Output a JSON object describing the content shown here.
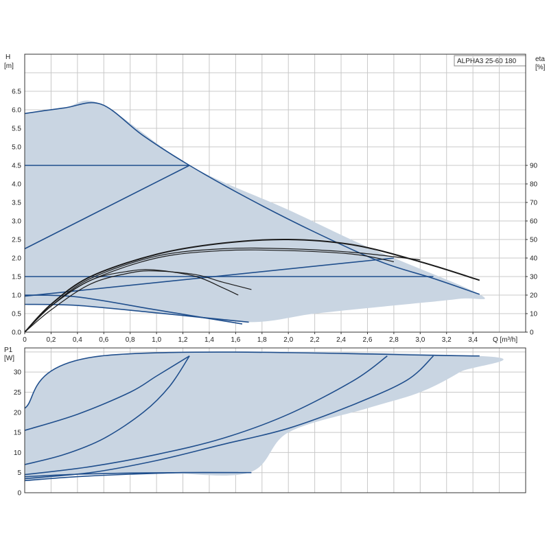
{
  "chart_data": [
    {
      "type": "line",
      "model_label": "ALPHA3 25-60 180",
      "x_axis_label": "Q [m³/h]",
      "y_axis_label": "H",
      "y_axis_unit": "[m]",
      "y2_axis_label": "eta",
      "y2_axis_unit": "[%]",
      "xlim": [
        0,
        3.8
      ],
      "ylim": [
        0,
        7.5
      ],
      "y2lim": [
        0,
        150
      ],
      "x_ticks": [
        "0",
        "0,2",
        "0,4",
        "0,6",
        "0,8",
        "1,0",
        "1,2",
        "1,4",
        "1,6",
        "1,8",
        "2,0",
        "2,2",
        "2,4",
        "2,6",
        "2,8",
        "3,0",
        "3,2",
        "3,4"
      ],
      "y_ticks": [
        "0.0",
        "0.5",
        "1.0",
        "1.5",
        "2.0",
        "2.5",
        "3.0",
        "3.5",
        "4.0",
        "4.5",
        "5.0",
        "5.5",
        "6.0",
        "6.5"
      ],
      "y2_ticks": [
        "0",
        "10",
        "20",
        "30",
        "40",
        "50",
        "60",
        "70",
        "80",
        "90"
      ],
      "grid": true,
      "colors": {
        "area": "#c9d5e2",
        "pump_curve": "#1f4e8c",
        "efficiency_curve": "#1a1a1a"
      },
      "operating_area": {
        "x": [
          0,
          0.3,
          0.58,
          1.25,
          2.0,
          2.6,
          3.45,
          3.3,
          2.8,
          2.2,
          1.7,
          1.0,
          0.4,
          0
        ],
        "y": [
          5.9,
          6.05,
          6.15,
          4.5,
          3.3,
          2.3,
          1.02,
          0.9,
          0.72,
          0.5,
          0.27,
          0.52,
          0.72,
          0.75
        ]
      },
      "series": [
        {
          "x": [
            0,
            0.3,
            0.58,
            0.9,
            1.25,
            1.7,
            2.2,
            2.7,
            3.1,
            3.45
          ],
          "y": [
            5.9,
            6.05,
            6.15,
            5.3,
            4.5,
            3.6,
            2.7,
            1.9,
            1.45,
            1.02
          ]
        },
        {
          "x": [
            0,
            1.25
          ],
          "y": [
            4.5,
            4.5
          ]
        },
        {
          "x": [
            0,
            1.25
          ],
          "y": [
            2.25,
            4.5
          ]
        },
        {
          "x": [
            0,
            3.1
          ],
          "y": [
            1.5,
            1.5
          ]
        },
        {
          "x": [
            0,
            2.8
          ],
          "y": [
            0.97,
            2.0
          ]
        },
        {
          "x": [
            0,
            0.4,
            1.0,
            1.7
          ],
          "y": [
            0.75,
            0.72,
            0.52,
            0.27
          ]
        },
        {
          "x": [
            0,
            0.4,
            1.0,
            1.65
          ],
          "y": [
            1.0,
            0.95,
            0.6,
            0.22
          ]
        }
      ],
      "efficiency_series": [
        {
          "x": [
            0,
            0.2,
            0.5,
            1.0,
            1.5,
            2.0,
            2.5,
            3.0,
            3.45
          ],
          "y": [
            0,
            15,
            30,
            42,
            48,
            50,
            47,
            38,
            28
          ]
        },
        {
          "x": [
            0,
            0.2,
            0.5,
            1.0,
            1.5,
            2.0,
            2.5,
            3.0
          ],
          "y": [
            0,
            14,
            29,
            41,
            45,
            45,
            43,
            39
          ]
        },
        {
          "x": [
            0,
            0.2,
            0.5,
            1.0,
            1.5,
            2.0,
            2.5,
            2.8
          ],
          "y": [
            0,
            14,
            28,
            40,
            44,
            44,
            42,
            38
          ]
        },
        {
          "x": [
            0,
            0.2,
            0.5,
            0.8,
            1.0,
            1.3,
            1.5,
            1.62
          ],
          "y": [
            0,
            14,
            28,
            33,
            33.5,
            30,
            24,
            20
          ]
        },
        {
          "x": [
            0,
            0.2,
            0.5,
            0.8,
            1.0,
            1.3,
            1.5,
            1.72
          ],
          "y": [
            0,
            12,
            26,
            32,
            33,
            31,
            27,
            23
          ]
        }
      ]
    },
    {
      "type": "line",
      "y_axis_label": "P1",
      "y_axis_unit": "[W]",
      "xlim": [
        0,
        3.8
      ],
      "ylim": [
        0,
        36
      ],
      "y_ticks": [
        "0",
        "5",
        "10",
        "15",
        "20",
        "25",
        "30"
      ],
      "grid": true,
      "operating_area": {
        "x": [
          0,
          0.58,
          3.45,
          3.3,
          3.0,
          2.6,
          2.0,
          1.7,
          1.0,
          0.4,
          0
        ],
        "y": [
          21,
          34,
          34,
          30,
          25,
          21,
          15,
          5,
          5,
          4.5,
          3
        ]
      },
      "series": [
        {
          "x": [
            0,
            0.58,
            3.45
          ],
          "y": [
            21,
            34,
            34
          ]
        },
        {
          "x": [
            0,
            0.4,
            0.8,
            1.0,
            1.25
          ],
          "y": [
            15.5,
            19.5,
            25,
            29,
            34
          ]
        },
        {
          "x": [
            0,
            0.3,
            0.6,
            0.9,
            1.1,
            1.25
          ],
          "y": [
            7,
            9.5,
            13.5,
            20,
            26.5,
            34
          ]
        },
        {
          "x": [
            0,
            0.5,
            1.0,
            1.5,
            2.0,
            2.5,
            2.75
          ],
          "y": [
            4.5,
            6.5,
            9.5,
            13.5,
            19.5,
            28,
            34
          ]
        },
        {
          "x": [
            0,
            0.5,
            1.0,
            1.5,
            2.0,
            2.5,
            2.9,
            3.1
          ],
          "y": [
            3.5,
            5,
            8,
            12,
            16,
            22,
            28,
            34
          ]
        },
        {
          "x": [
            0,
            0.4,
            0.8,
            1.2,
            1.72
          ],
          "y": [
            4,
            4.6,
            4.9,
            5,
            5
          ]
        },
        {
          "x": [
            0,
            0.4,
            0.8,
            1.2,
            1.62
          ],
          "y": [
            3,
            4,
            4.6,
            5,
            5
          ]
        }
      ]
    }
  ]
}
